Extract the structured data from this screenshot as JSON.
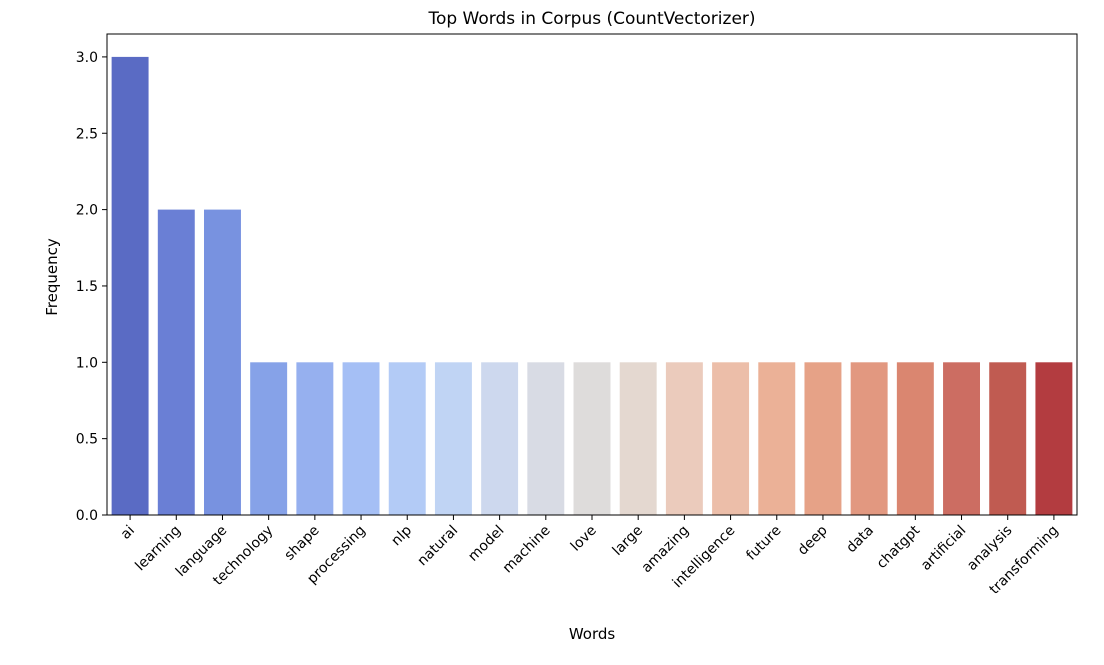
{
  "chart_data": {
    "type": "bar",
    "title": "Top Words in Corpus (CountVectorizer)",
    "xlabel": "Words",
    "ylabel": "Frequency",
    "ylim": [
      0,
      3.15
    ],
    "yticks": [
      "0.0",
      "0.5",
      "1.0",
      "1.5",
      "2.0",
      "2.5",
      "3.0"
    ],
    "ytick_values": [
      0,
      0.5,
      1.0,
      1.5,
      2.0,
      2.5,
      3.0
    ],
    "grid": false,
    "legend": "none",
    "palette": "coolwarm",
    "categories": [
      "ai",
      "learning",
      "language",
      "technology",
      "shape",
      "processing",
      "nlp",
      "natural",
      "model",
      "machine",
      "love",
      "large",
      "amazing",
      "intelligence",
      "future",
      "deep",
      "data",
      "chatgpt",
      "artificial",
      "analysis",
      "transforming"
    ],
    "values": [
      3,
      2,
      2,
      1,
      1,
      1,
      1,
      1,
      1,
      1,
      1,
      1,
      1,
      1,
      1,
      1,
      1,
      1,
      1,
      1,
      1
    ],
    "colors": [
      "#5a6bc4",
      "#6a7fd5",
      "#7892e0",
      "#86a2e8",
      "#96b0ef",
      "#a5bff5",
      "#b3cbf6",
      "#c0d4f4",
      "#cdd8ee",
      "#d8dbe4",
      "#dedcdb",
      "#e4d8d0",
      "#ebcbbc",
      "#ecbea9",
      "#ebb197",
      "#e6a287",
      "#e29880",
      "#da8670",
      "#cc6d62",
      "#c05b51",
      "#b33c40"
    ]
  }
}
